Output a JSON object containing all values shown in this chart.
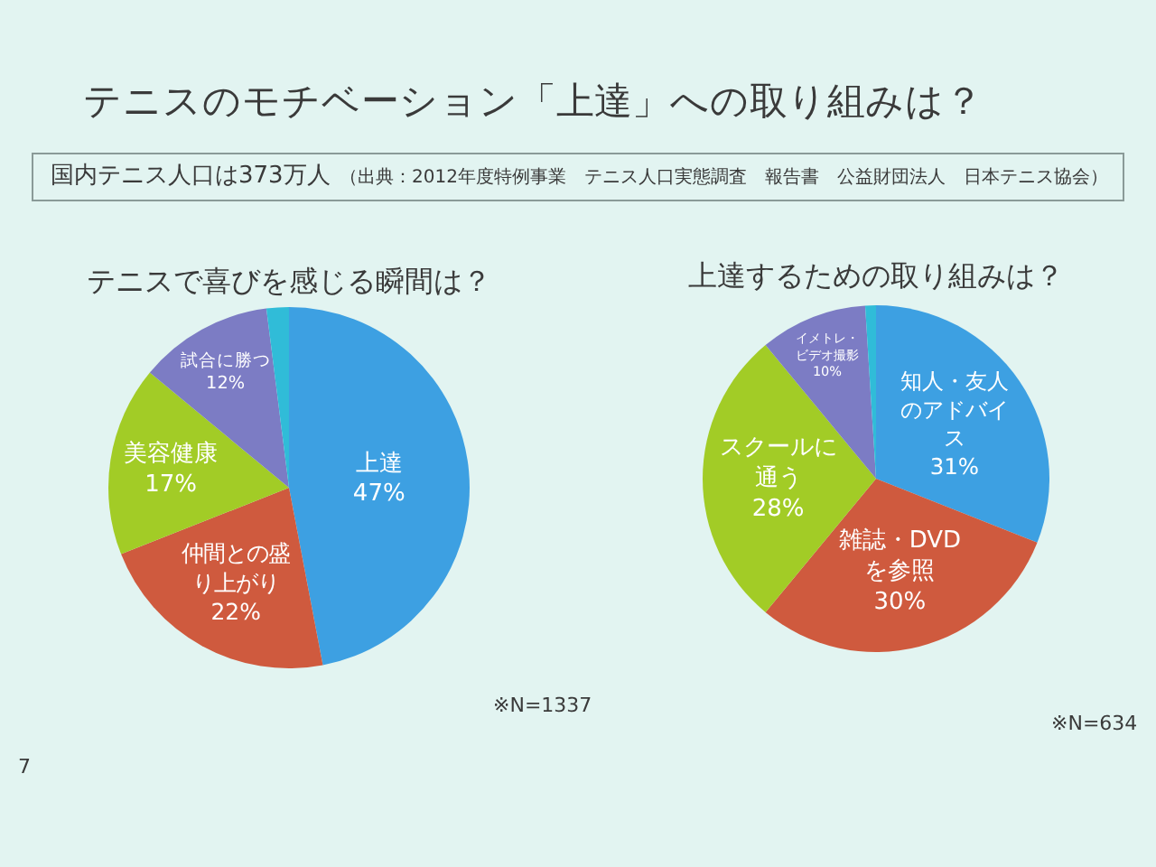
{
  "chart_data": [
    {
      "type": "other",
      "title": "テニスのモチベーション「上達」への取り組みは？",
      "annotations": [
        "国内テニス人口は373万人",
        "（出典：2012年度特例事業　テニス人口実態調査　報告書　公益財団法人　日本テニス協会）",
        "7"
      ]
    },
    {
      "type": "pie",
      "title": "テニスで喜びを感じる瞬間は？",
      "categories": [
        "上達",
        "仲間との盛り上がり",
        "美容健康",
        "試合に勝つ",
        null
      ],
      "values": [
        47,
        22,
        17,
        12,
        2
      ],
      "value_labels": [
        "47%",
        "22%",
        "17%",
        "12%",
        null
      ],
      "colors": [
        "#3da0e2",
        "#cf5a3e",
        "#a2cc26",
        "#7c7cc4",
        "#30bcd8"
      ],
      "annotations": [
        "※N=1337"
      ]
    },
    {
      "type": "pie",
      "title": "上達するための取り組みは？",
      "categories": [
        "知人・友人のアドバイス",
        "雑誌・DVDを参照",
        "スクールに通う",
        "イメトレ・ビデオ撮影",
        null
      ],
      "values": [
        31,
        30,
        28,
        10,
        1
      ],
      "value_labels": [
        "31%",
        "30%",
        "28%",
        "10%",
        null
      ],
      "colors": [
        "#3da0e2",
        "#cf5a3e",
        "#a2cc26",
        "#7c7cc4",
        "#30bcd8"
      ],
      "annotations": [
        "※N=634"
      ]
    }
  ]
}
